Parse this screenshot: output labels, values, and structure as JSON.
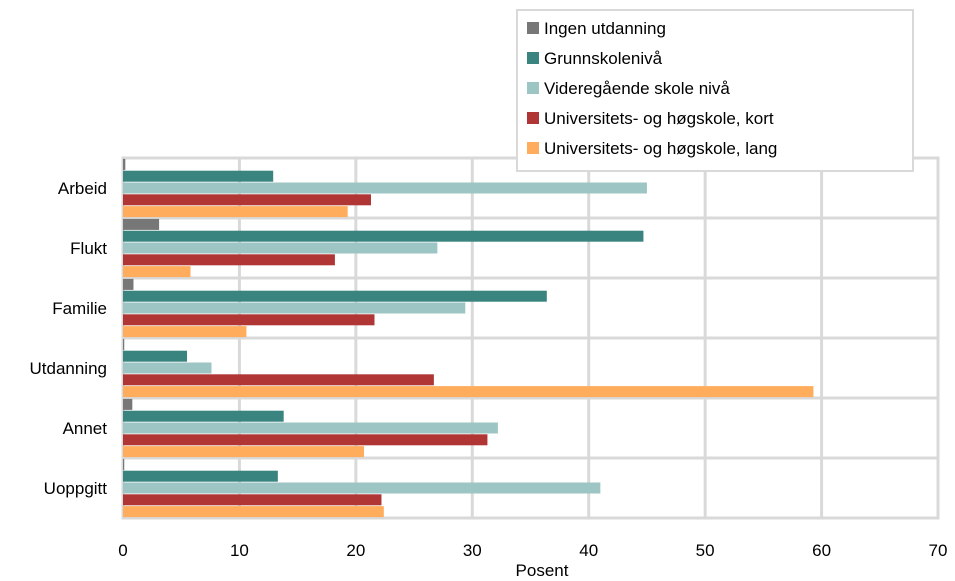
{
  "chart_data": {
    "type": "bar",
    "orientation": "horizontal",
    "categories": [
      "Arbeid",
      "Flukt",
      "Familie",
      "Utdanning",
      "Annet",
      "Uoppgitt"
    ],
    "series": [
      {
        "name": "Ingen utdanning",
        "color": "#777777",
        "values": [
          0.2,
          3.1,
          0.9,
          0.1,
          0.8,
          0.1
        ]
      },
      {
        "name": "Grunnskolenivå",
        "color": "#3a8480",
        "values": [
          12.9,
          44.7,
          36.4,
          5.5,
          13.8,
          13.3
        ]
      },
      {
        "name": "Videregående skole nivå",
        "color": "#9dc5c3",
        "values": [
          45.0,
          27.0,
          29.4,
          7.6,
          32.2,
          41.0
        ]
      },
      {
        "name": "Universitets- og høgskole, kort",
        "color": "#b03535",
        "values": [
          21.3,
          18.2,
          21.6,
          26.7,
          31.3,
          22.2
        ]
      },
      {
        "name": "Universitets- og høgskole, lang",
        "color": "#ffad5c",
        "values": [
          19.3,
          5.8,
          10.6,
          59.3,
          20.7,
          22.4
        ]
      }
    ],
    "xlabel": "Posent",
    "ylabel": "",
    "xlim": [
      0,
      70
    ],
    "xticks": [
      "0",
      "10",
      "20",
      "30",
      "40",
      "50",
      "60",
      "70"
    ],
    "grid": true,
    "legend_position": "top-right"
  }
}
